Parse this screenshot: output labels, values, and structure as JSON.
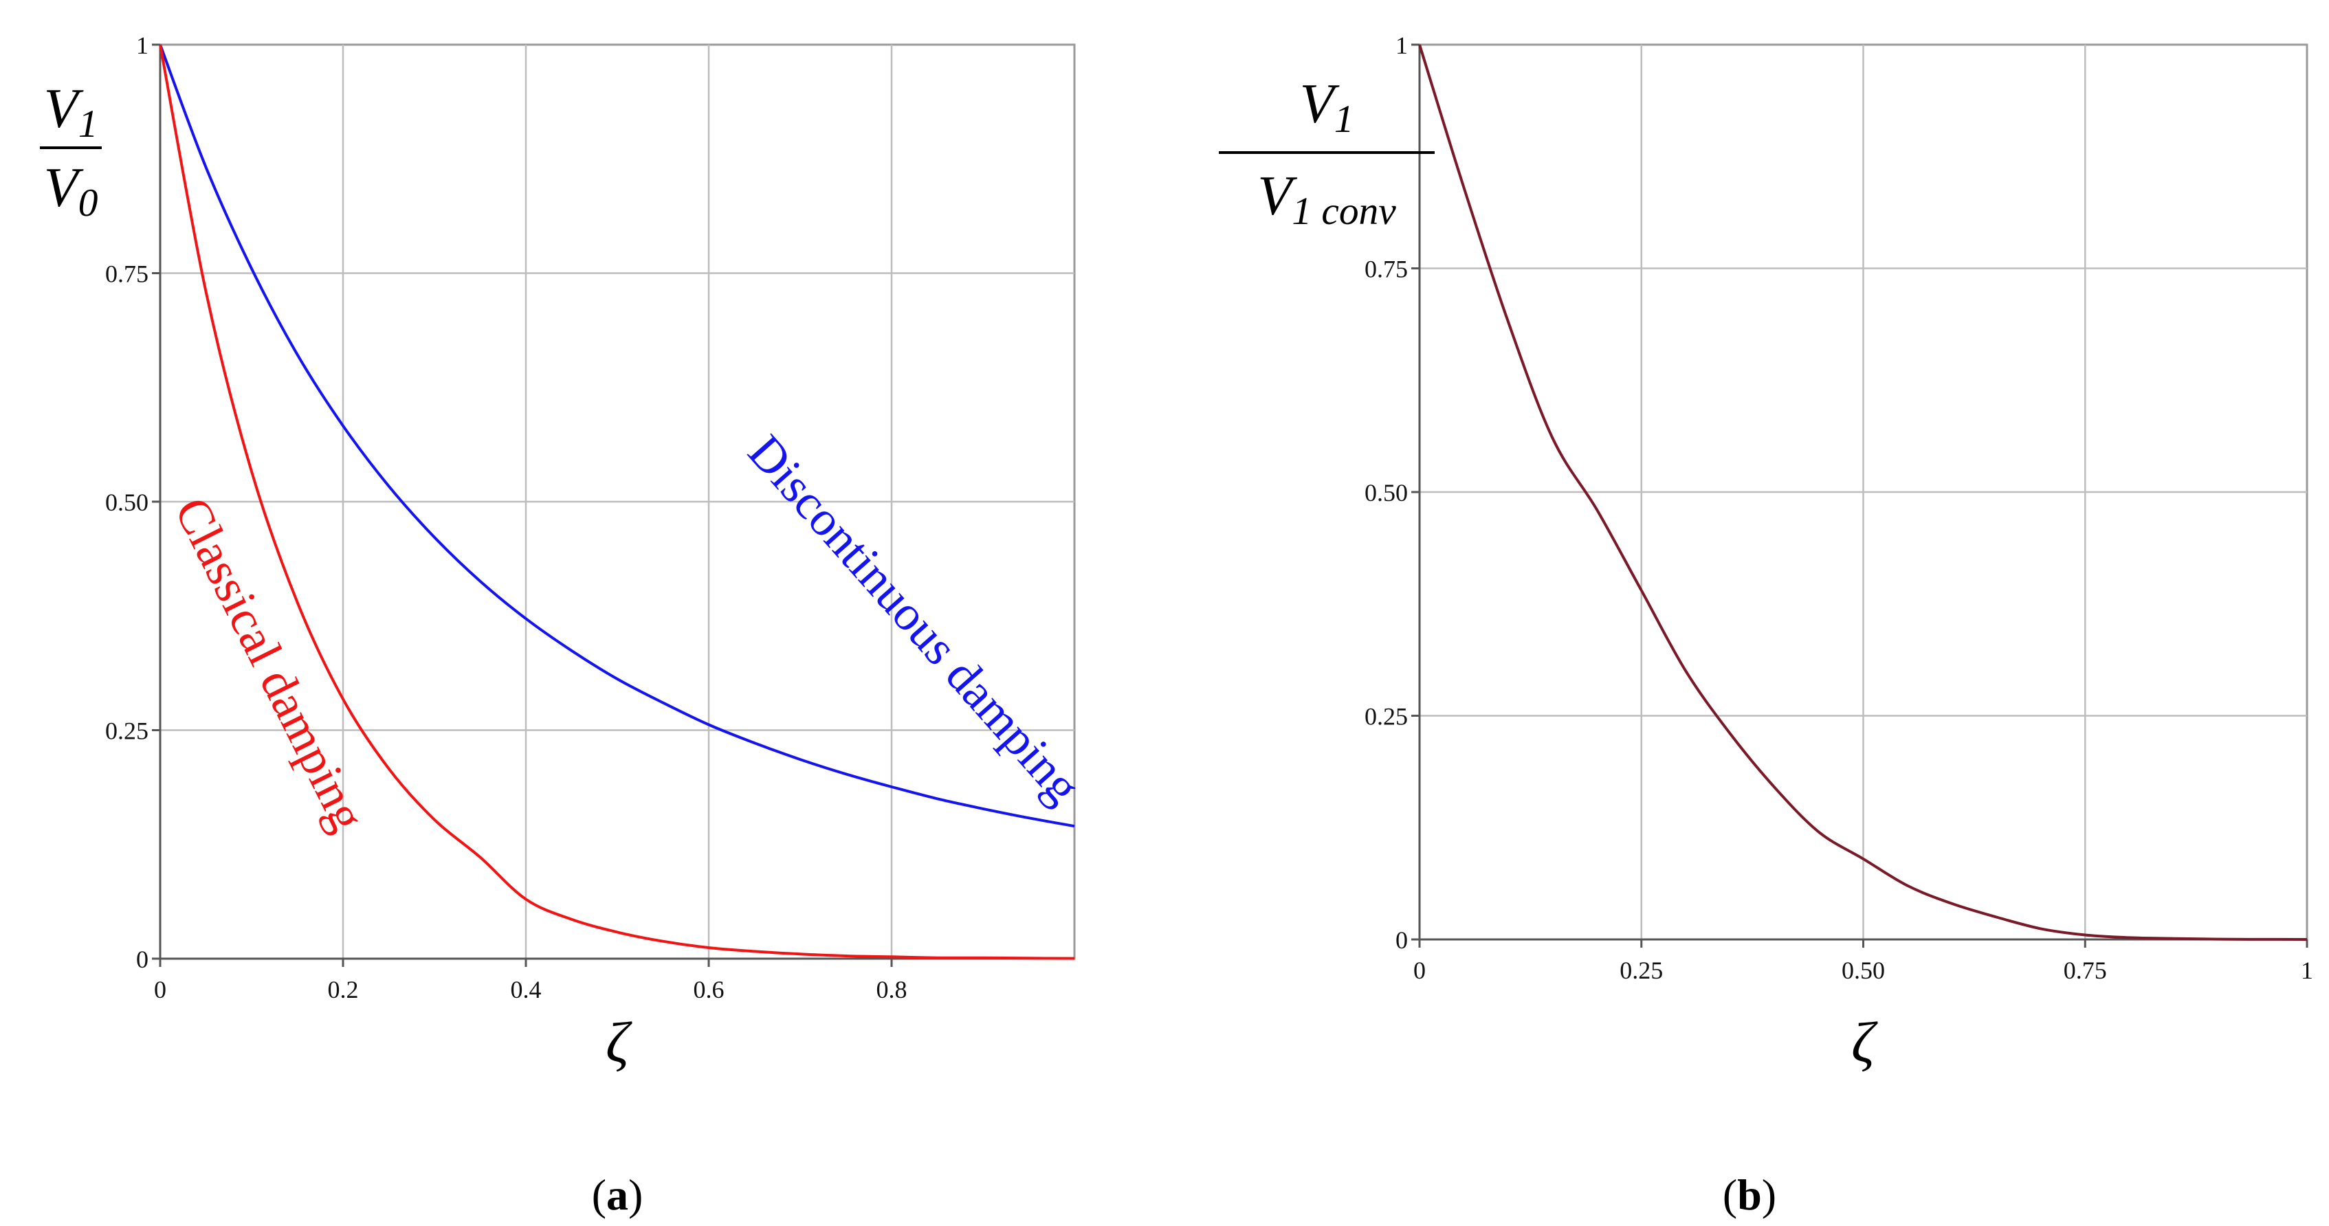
{
  "chart_data": [
    {
      "panel": "(a)",
      "type": "line",
      "caption": {
        "open": "(",
        "letter": "a",
        "close": ")"
      },
      "xlabel": "ζ",
      "ylabel": {
        "numerator": "V",
        "numerator_sub": "1",
        "denominator": "V",
        "denominator_sub": "0"
      },
      "xlim": [
        0,
        1.0
      ],
      "ylim": [
        0,
        1.0
      ],
      "x_ticks": [
        0,
        0.2,
        0.4,
        0.6,
        0.8
      ],
      "x_tick_labels": [
        "0",
        "0.2",
        "0.4",
        "0.6",
        "0.8"
      ],
      "y_ticks": [
        0,
        0.25,
        0.5,
        0.75,
        1
      ],
      "y_tick_labels": [
        "0",
        "0.25",
        "0.50",
        "0.75",
        "1"
      ],
      "grid": true,
      "series": [
        {
          "name": "Discontinuous damping",
          "color": "#1414f0",
          "x": [
            0,
            0.05,
            0.1,
            0.15,
            0.2,
            0.25,
            0.3,
            0.35,
            0.4,
            0.45,
            0.5,
            0.55,
            0.6,
            0.65,
            0.7,
            0.75,
            0.8,
            0.85,
            0.9,
            0.95,
            1.0
          ],
          "y": [
            1.0,
            0.866,
            0.755,
            0.661,
            0.583,
            0.517,
            0.461,
            0.413,
            0.372,
            0.337,
            0.306,
            0.28,
            0.256,
            0.236,
            0.218,
            0.202,
            0.188,
            0.175,
            0.164,
            0.154,
            0.145
          ]
        },
        {
          "name": "Classical damping",
          "color": "#f01414",
          "x": [
            0,
            0.05,
            0.1,
            0.15,
            0.2,
            0.25,
            0.3,
            0.35,
            0.4,
            0.45,
            0.5,
            0.55,
            0.6,
            0.65,
            0.7,
            0.75,
            0.8,
            0.85,
            0.9,
            0.95,
            1.0
          ],
          "y": [
            1.0,
            0.73,
            0.533,
            0.39,
            0.284,
            0.208,
            0.152,
            0.111,
            0.065,
            0.043,
            0.029,
            0.019,
            0.012,
            0.008,
            0.005,
            0.003,
            0.002,
            0.001,
            0.001,
            0.0005,
            0.0003
          ]
        }
      ]
    },
    {
      "panel": "(b)",
      "type": "line",
      "caption": {
        "open": "(",
        "letter": "b",
        "close": ")"
      },
      "xlabel": "ζ",
      "ylabel": {
        "numerator": "V",
        "numerator_sub": "1",
        "denominator": "V",
        "denominator_sub": "1 conv"
      },
      "xlim": [
        0,
        1.0
      ],
      "ylim": [
        0,
        1.0
      ],
      "x_ticks": [
        0,
        0.25,
        0.5,
        0.75,
        1
      ],
      "x_tick_labels": [
        "0",
        "0.25",
        "0.50",
        "0.75",
        "1"
      ],
      "y_ticks": [
        0,
        0.25,
        0.5,
        0.75,
        1
      ],
      "y_tick_labels": [
        "0",
        "0.25",
        "0.50",
        "0.75",
        "1"
      ],
      "grid": true,
      "series": [
        {
          "color": "#7a1a28",
          "x": [
            0,
            0.05,
            0.1,
            0.15,
            0.2,
            0.25,
            0.3,
            0.35,
            0.4,
            0.45,
            0.5,
            0.55,
            0.6,
            0.65,
            0.7,
            0.75,
            0.8,
            0.85,
            0.9,
            0.95,
            1.0
          ],
          "y": [
            1.0,
            0.84,
            0.69,
            0.56,
            0.48,
            0.39,
            0.3,
            0.23,
            0.17,
            0.12,
            0.09,
            0.06,
            0.04,
            0.025,
            0.012,
            0.005,
            0.002,
            0.001,
            0.0003,
            0.0001,
            0.0
          ]
        }
      ]
    }
  ]
}
